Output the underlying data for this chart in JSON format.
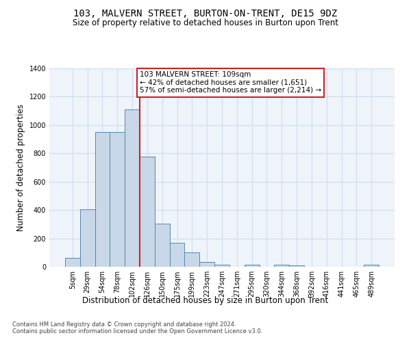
{
  "title1": "103, MALVERN STREET, BURTON-ON-TRENT, DE15 9DZ",
  "title2": "Size of property relative to detached houses in Burton upon Trent",
  "xlabel": "Distribution of detached houses by size in Burton upon Trent",
  "ylabel": "Number of detached properties",
  "footnote1": "Contains HM Land Registry data © Crown copyright and database right 2024.",
  "footnote2": "Contains public sector information licensed under the Open Government Licence v3.0.",
  "annotation_line1": "103 MALVERN STREET: 109sqm",
  "annotation_line2": "← 42% of detached houses are smaller (1,651)",
  "annotation_line3": "57% of semi-detached houses are larger (2,214) →",
  "bar_labels": [
    "5sqm",
    "29sqm",
    "54sqm",
    "78sqm",
    "102sqm",
    "126sqm",
    "150sqm",
    "175sqm",
    "199sqm",
    "223sqm",
    "247sqm",
    "271sqm",
    "295sqm",
    "320sqm",
    "344sqm",
    "368sqm",
    "392sqm",
    "416sqm",
    "441sqm",
    "465sqm",
    "489sqm"
  ],
  "bar_values": [
    65,
    405,
    950,
    950,
    1110,
    775,
    305,
    170,
    100,
    35,
    15,
    0,
    15,
    0,
    15,
    10,
    0,
    0,
    0,
    0,
    15
  ],
  "bar_color": "#c8d8e8",
  "bar_edge_color": "#5588aa",
  "grid_color": "#ccddee",
  "background_color": "#eef4fa",
  "vline_x": 4.5,
  "vline_color": "#cc2222",
  "annotation_box_color": "#cc2222",
  "ylim": [
    0,
    1400
  ],
  "yticks": [
    0,
    200,
    400,
    600,
    800,
    1000,
    1200,
    1400
  ],
  "title1_fontsize": 10,
  "title2_fontsize": 8.5,
  "ylabel_fontsize": 8.5,
  "xlabel_fontsize": 8.5,
  "tick_fontsize": 7,
  "footnote_fontsize": 6,
  "annotation_fontsize": 7.5
}
